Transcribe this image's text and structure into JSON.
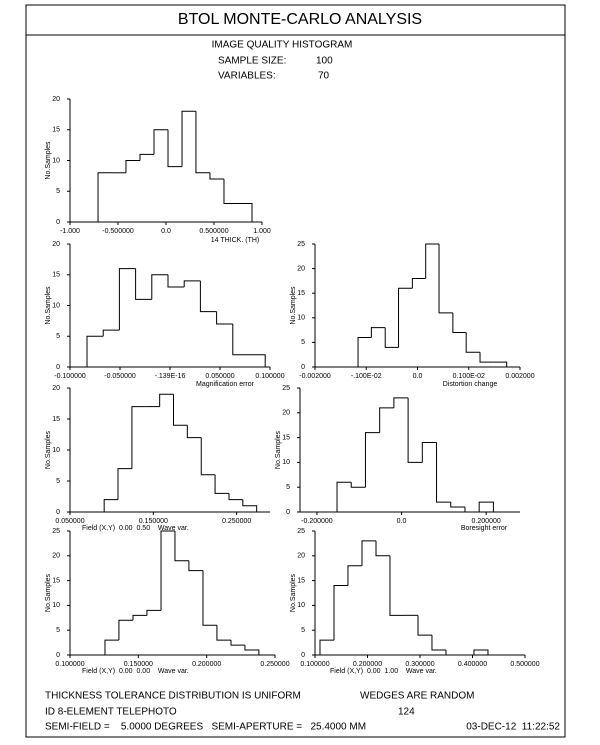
{
  "header": {
    "title": "BTOL MONTE-CARLO ANALYSIS",
    "subtitle": "IMAGE QUALITY HISTOGRAM",
    "sample_size_label": "SAMPLE SIZE:",
    "sample_size": "100",
    "variables_label": "VARIABLES:",
    "variables": "70"
  },
  "chart_data": [
    {
      "type": "histogram",
      "xlabel": "14 THICK. (TH)",
      "ylabel": "No.Samples",
      "bins": [
        -0.708,
        -0.562,
        -0.417,
        -0.271,
        -0.125,
        0.021,
        0.167,
        0.312,
        0.458,
        0.604,
        0.75,
        0.896
      ],
      "values": [
        8,
        8,
        10,
        11,
        15,
        9,
        18,
        8,
        7,
        3,
        3
      ],
      "xlim": [
        -1,
        1
      ],
      "ylim": [
        0,
        20
      ],
      "yticks": [
        0,
        5,
        10,
        15,
        20
      ],
      "xticks": [
        {
          "value": -1,
          "label": "-1.000"
        },
        {
          "value": -0.5,
          "label": "-0.500000"
        },
        {
          "value": 0,
          "label": "0.0"
        },
        {
          "value": 0.5,
          "label": "0.500000"
        },
        {
          "value": 1,
          "label": "1.000"
        }
      ],
      "color": "#000000"
    },
    {
      "type": "histogram",
      "xlabel": "Magnification error",
      "ylabel": "No.Samples",
      "bins": [
        -0.083,
        -0.0668,
        -0.0506,
        -0.0344,
        -0.0182,
        -0.002,
        0.0142,
        0.0304,
        0.0466,
        0.0628,
        0.079,
        0.0952
      ],
      "values": [
        5,
        6,
        16,
        11,
        15,
        13,
        14,
        9,
        7,
        2,
        2
      ],
      "xlim": [
        -0.1,
        0.1
      ],
      "ylim": [
        0,
        20
      ],
      "yticks": [
        0,
        5,
        10,
        15,
        20
      ],
      "xticks": [
        {
          "value": -0.1,
          "label": "-0.100000"
        },
        {
          "value": -0.05,
          "label": "-0.050000"
        },
        {
          "value": -1.39e-17,
          "label": "-.139E-16"
        },
        {
          "value": 0.05,
          "label": "0.050000"
        },
        {
          "value": 0.1,
          "label": "0.100000"
        }
      ],
      "color": "#000000"
    },
    {
      "type": "histogram",
      "xlabel": "Distortion change",
      "ylabel": "No.Samples",
      "bins": [
        -0.00116,
        -0.0009,
        -0.00063,
        -0.00037,
        -0.0001,
        0.00016,
        0.00042,
        0.00069,
        0.00095,
        0.00122,
        0.00148,
        0.00174
      ],
      "values": [
        6,
        8,
        4,
        16,
        18,
        25,
        11,
        7,
        3,
        1,
        1
      ],
      "xlim": [
        -0.002,
        0.002
      ],
      "ylim": [
        0,
        25
      ],
      "yticks": [
        0,
        5,
        10,
        15,
        20,
        25
      ],
      "xticks": [
        {
          "value": -0.002,
          "label": "-0.002000"
        },
        {
          "value": -0.001,
          "label": "-.100E-02"
        },
        {
          "value": 0,
          "label": "0.0"
        },
        {
          "value": 0.001,
          "label": "0.100E-02"
        },
        {
          "value": 0.002,
          "label": "0.002000"
        }
      ],
      "color": "#000000"
    },
    {
      "type": "histogram",
      "xlabel": "Field (X,Y)  0.00  0.50    Wave var.",
      "ylabel": "No.Samples",
      "bins": [
        0.091,
        0.1076,
        0.1243,
        0.1409,
        0.1576,
        0.1742,
        0.1908,
        0.2075,
        0.2241,
        0.2408,
        0.2574,
        0.274
      ],
      "values": [
        2,
        7,
        17,
        17,
        19,
        14,
        12,
        6,
        3,
        2,
        1
      ],
      "xlim": [
        0.05,
        0.29
      ],
      "ylim": [
        0,
        20
      ],
      "yticks": [
        0,
        5,
        10,
        15,
        20
      ],
      "xticks": [
        {
          "value": 0.05,
          "label": "0.050000"
        },
        {
          "value": 0.15,
          "label": "0.150000"
        },
        {
          "value": 0.25,
          "label": "0.250000"
        }
      ],
      "color": "#000000"
    },
    {
      "type": "histogram",
      "xlabel": "Boresight error",
      "ylabel": "No.Samples",
      "bins": [
        -0.1525,
        -0.1189,
        -0.0853,
        -0.0517,
        -0.0181,
        0.0155,
        0.0491,
        0.0827,
        0.1163,
        0.1499,
        0.1835,
        0.2171
      ],
      "values": [
        6,
        5,
        16,
        21,
        23,
        10,
        14,
        2,
        1,
        0,
        2
      ],
      "xlim": [
        -0.24,
        0.28
      ],
      "ylim": [
        0,
        25
      ],
      "yticks": [
        0,
        5,
        10,
        15,
        20,
        25
      ],
      "xticks": [
        {
          "value": -0.2,
          "label": "-0.200000"
        },
        {
          "value": 0,
          "label": "0.0"
        },
        {
          "value": 0.2,
          "label": "0.200000"
        }
      ],
      "color": "#000000"
    },
    {
      "type": "histogram",
      "xlabel": "Field (X,Y)  0.00  0.00    Wave var.",
      "ylabel": "No.Samples",
      "bins": [
        0.1256,
        0.1358,
        0.1461,
        0.1563,
        0.1666,
        0.1768,
        0.187,
        0.1973,
        0.2075,
        0.2178,
        0.228,
        0.2382
      ],
      "values": [
        3,
        7,
        8,
        9,
        25,
        19,
        17,
        6,
        3,
        2,
        1
      ],
      "xlim": [
        0.1,
        0.25
      ],
      "ylim": [
        0,
        25
      ],
      "yticks": [
        0,
        5,
        10,
        15,
        20,
        25
      ],
      "xticks": [
        {
          "value": 0.1,
          "label": "0.100000"
        },
        {
          "value": 0.15,
          "label": "0.150000"
        },
        {
          "value": 0.2,
          "label": "0.200000"
        },
        {
          "value": 0.25,
          "label": "0.250000"
        }
      ],
      "color": "#000000"
    },
    {
      "type": "histogram",
      "xlabel": "Field (X,Y)  0.00  1.00    Wave var.",
      "ylabel": "No.Samples",
      "bins": [
        0.1095,
        0.1362,
        0.1628,
        0.1895,
        0.2162,
        0.2428,
        0.2695,
        0.2962,
        0.3228,
        0.3495,
        0.3762,
        0.4028,
        0.4295
      ],
      "values": [
        3,
        14,
        18,
        23,
        20,
        8,
        8,
        4,
        1,
        0,
        0,
        1
      ],
      "xlim": [
        0.1,
        0.5
      ],
      "ylim": [
        0,
        25
      ],
      "yticks": [
        0,
        5,
        10,
        15,
        20,
        25
      ],
      "xticks": [
        {
          "value": 0.1,
          "label": "0.100000"
        },
        {
          "value": 0.2,
          "label": "0.200000"
        },
        {
          "value": 0.3,
          "label": "0.300000"
        },
        {
          "value": 0.4,
          "label": "0.400000"
        },
        {
          "value": 0.5,
          "label": "0.500000"
        }
      ],
      "color": "#000000"
    }
  ],
  "footer": {
    "distribution": "THICKNESS TOLERANCE DISTRIBUTION IS UNIFORM",
    "wedges": "WEDGES ARE RANDOM",
    "id": "ID 8-ELEMENT TELEPHOTO",
    "number": "124",
    "semi": "SEMI-FIELD =    5.0000 DEGREES   SEMI-APERTURE =   25.4000 MM",
    "date": "03-DEC-12  11:22:52"
  }
}
